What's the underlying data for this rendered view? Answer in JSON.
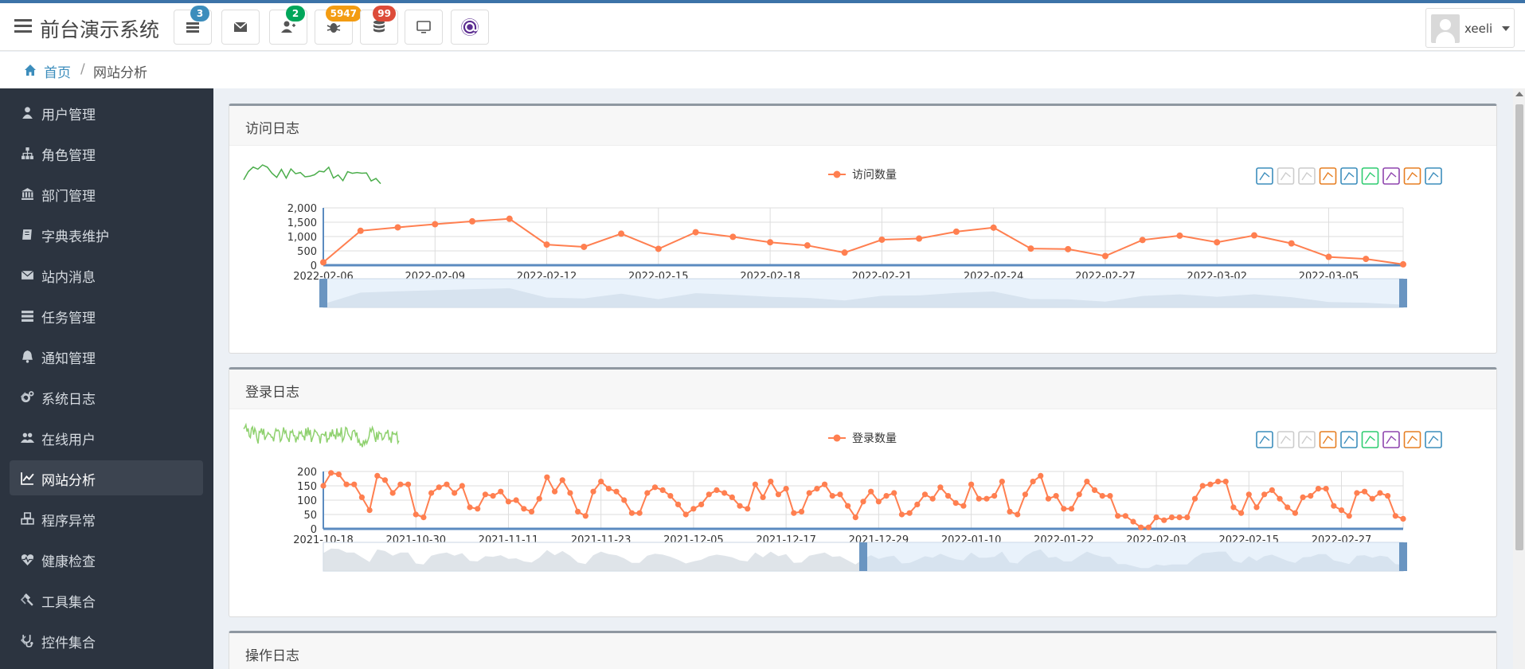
{
  "app": {
    "title": "前台演示系统"
  },
  "header": {
    "buttons": [
      {
        "name": "tasks",
        "badge": "3",
        "badge_color": "#3c8dbc"
      },
      {
        "name": "messages",
        "badge": "",
        "badge_color": ""
      },
      {
        "name": "users",
        "badge": "2",
        "badge_color": "#00a65a"
      },
      {
        "name": "bugs",
        "badge": "5947",
        "badge_color": "#f39c12"
      },
      {
        "name": "db",
        "badge": "99",
        "badge_color": "#dd4b39"
      },
      {
        "name": "monitor",
        "badge": "",
        "badge_color": ""
      },
      {
        "name": "blazor",
        "badge": "",
        "badge_color": ""
      }
    ],
    "user": {
      "name": "xeeli"
    }
  },
  "breadcrumb": {
    "home": "首页",
    "current": "网站分析"
  },
  "sidebar": {
    "items": [
      {
        "label": "用户管理",
        "icon": "user-icon",
        "active": false,
        "expandable": false
      },
      {
        "label": "角色管理",
        "icon": "sitemap-icon",
        "active": false,
        "expandable": false
      },
      {
        "label": "部门管理",
        "icon": "bank-icon",
        "active": false,
        "expandable": false
      },
      {
        "label": "字典表维护",
        "icon": "book-icon",
        "active": false,
        "expandable": false
      },
      {
        "label": "站内消息",
        "icon": "envelope-icon",
        "active": false,
        "expandable": false
      },
      {
        "label": "任务管理",
        "icon": "tasks-icon",
        "active": false,
        "expandable": false
      },
      {
        "label": "通知管理",
        "icon": "bell-icon",
        "active": false,
        "expandable": false
      },
      {
        "label": "系统日志",
        "icon": "cogs-icon",
        "active": false,
        "expandable": true
      },
      {
        "label": "在线用户",
        "icon": "users-icon",
        "active": false,
        "expandable": false
      },
      {
        "label": "网站分析",
        "icon": "line-chart-icon",
        "active": true,
        "expandable": false
      },
      {
        "label": "程序异常",
        "icon": "cubes-icon",
        "active": false,
        "expandable": false
      },
      {
        "label": "健康检查",
        "icon": "heartbeat-icon",
        "active": false,
        "expandable": false
      },
      {
        "label": "工具集合",
        "icon": "gavel-icon",
        "active": false,
        "expandable": true
      },
      {
        "label": "控件集合",
        "icon": "stethoscope-icon",
        "active": false,
        "expandable": true
      }
    ]
  },
  "colors": {
    "series": "#ff7f50",
    "sidebar": "#2c3440",
    "link": "#3c8dbc"
  },
  "cards": {
    "visits": {
      "title": "访问日志"
    },
    "logins": {
      "title": "登录日志"
    },
    "ops": {
      "title": "操作日志"
    }
  },
  "chart_data": [
    {
      "type": "line",
      "legend": "访问数量",
      "yticks": [
        "2,000",
        "1,500",
        "1,000",
        "500",
        "0"
      ],
      "ylim": [
        0,
        2000
      ],
      "xticks": [
        "2022-02-06",
        "2022-02-09",
        "2022-02-12",
        "2022-02-15",
        "2022-02-18",
        "2022-02-21",
        "2022-02-24",
        "2022-02-27",
        "2022-03-02",
        "2022-03-05"
      ],
      "x_start": "2022-02-06",
      "x_end": "2022-03-07",
      "values": [
        100,
        1200,
        1320,
        1430,
        1530,
        1620,
        720,
        640,
        1100,
        570,
        1150,
        990,
        800,
        690,
        440,
        890,
        930,
        1170,
        1310,
        580,
        560,
        320,
        880,
        1030,
        800,
        1040,
        760,
        290,
        220,
        30
      ],
      "grid": true,
      "legend_position": "top-center"
    },
    {
      "type": "line",
      "legend": "登录数量",
      "yticks": [
        "200",
        "150",
        "100",
        "50",
        "0"
      ],
      "ylim": [
        0,
        200
      ],
      "xticks": [
        "2021-10-18",
        "2021-10-30",
        "2021-11-11",
        "2021-11-23",
        "2021-12-05",
        "2021-12-17",
        "2021-12-29",
        "2022-01-10",
        "2022-01-22",
        "2022-02-03",
        "2022-02-15",
        "2022-02-27"
      ],
      "x_start": "2021-10-18",
      "x_end": "2022-03-07",
      "values": [
        150,
        195,
        190,
        155,
        155,
        110,
        65,
        185,
        170,
        125,
        155,
        155,
        50,
        40,
        125,
        145,
        155,
        125,
        150,
        75,
        70,
        120,
        115,
        130,
        95,
        100,
        70,
        60,
        105,
        180,
        130,
        170,
        125,
        60,
        45,
        130,
        165,
        140,
        130,
        100,
        55,
        55,
        125,
        145,
        135,
        115,
        85,
        50,
        70,
        85,
        120,
        135,
        125,
        110,
        80,
        70,
        155,
        110,
        165,
        120,
        140,
        55,
        60,
        125,
        140,
        155,
        115,
        120,
        80,
        40,
        95,
        130,
        95,
        115,
        125,
        50,
        55,
        85,
        120,
        105,
        145,
        115,
        90,
        80,
        155,
        105,
        105,
        115,
        165,
        60,
        50,
        120,
        165,
        185,
        105,
        115,
        70,
        70,
        120,
        165,
        135,
        115,
        115,
        45,
        45,
        25,
        5,
        5,
        40,
        30,
        40,
        40,
        40,
        105,
        150,
        155,
        165,
        165,
        75,
        55,
        120,
        75,
        120,
        135,
        105,
        75,
        55,
        110,
        115,
        140,
        140,
        80,
        65,
        45,
        125,
        130,
        105,
        125,
        115,
        45,
        35
      ],
      "grid": true,
      "legend_position": "top-center"
    }
  ]
}
